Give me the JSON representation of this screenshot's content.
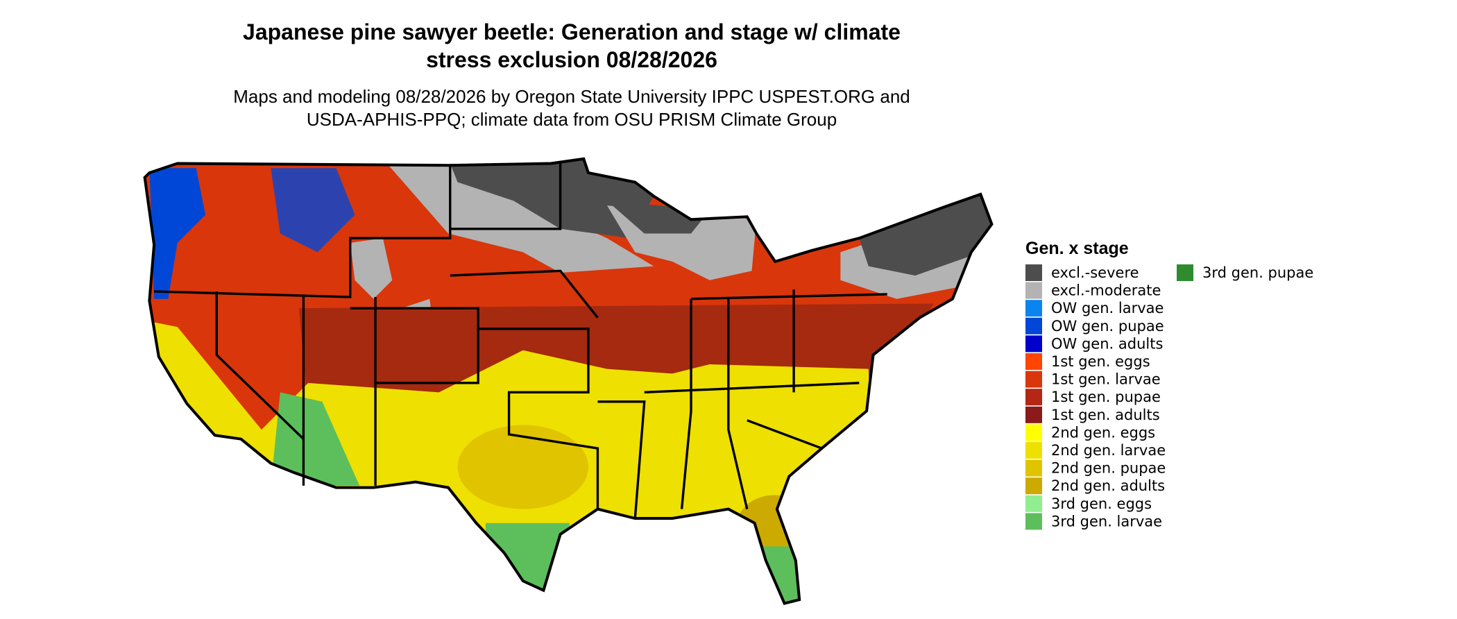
{
  "title": "Japanese pine sawyer beetle: Generation and stage w/ climate stress exclusion 08/28/2026",
  "title_lines": [
    "Japanese pine sawyer beetle: Generation and stage w/ climate",
    "stress exclusion 08/28/2026"
  ],
  "subtitle_lines": [
    "Maps and modeling 08/28/2026 by Oregon State University IPPC USPEST.ORG and",
    "USDA-APHIS-PPQ; climate data from OSU PRISM Climate Group"
  ],
  "legend": {
    "title": "Gen. x stage",
    "items": [
      {
        "label": "excl.-severe",
        "color": "#4d4d4d"
      },
      {
        "label": "excl.-moderate",
        "color": "#b3b3b3"
      },
      {
        "label": "OW gen. larvae",
        "color": "#0a84ee"
      },
      {
        "label": "OW gen. pupae",
        "color": "#0047d8"
      },
      {
        "label": "OW gen. adults",
        "color": "#0000cc"
      },
      {
        "label": "1st gen. eggs",
        "color": "#ff4500"
      },
      {
        "label": "1st gen. larvae",
        "color": "#d9360c"
      },
      {
        "label": "1st gen. pupae",
        "color": "#b52614"
      },
      {
        "label": "1st gen. adults",
        "color": "#8b1a1a"
      },
      {
        "label": "2nd gen. eggs",
        "color": "#ffff00"
      },
      {
        "label": "2nd gen. larvae",
        "color": "#eee000"
      },
      {
        "label": "2nd gen. pupae",
        "color": "#e0c400"
      },
      {
        "label": "2nd gen. adults",
        "color": "#ccaa00"
      },
      {
        "label": "3rd gen. eggs",
        "color": "#90ee90"
      },
      {
        "label": "3rd gen. larvae",
        "color": "#5cbf5c"
      },
      {
        "label": "3rd gen. pupae",
        "color": "#2e8b2e"
      }
    ]
  }
}
